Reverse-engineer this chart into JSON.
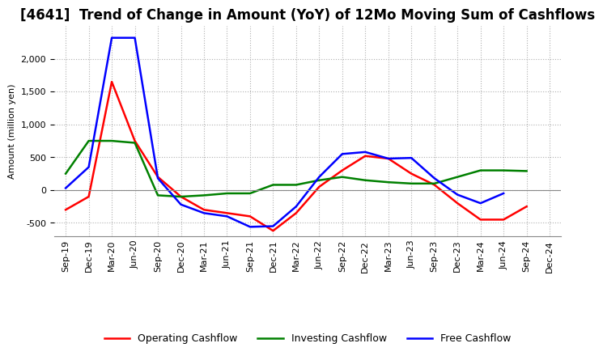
{
  "title": "[4641]  Trend of Change in Amount (YoY) of 12Mo Moving Sum of Cashflows",
  "ylabel": "Amount (million yen)",
  "ylim": [
    -700,
    2500
  ],
  "yticks": [
    -500,
    0,
    500,
    1000,
    1500,
    2000
  ],
  "x_labels": [
    "Sep-19",
    "Dec-19",
    "Mar-20",
    "Jun-20",
    "Sep-20",
    "Dec-20",
    "Mar-21",
    "Jun-21",
    "Sep-21",
    "Dec-21",
    "Mar-22",
    "Jun-22",
    "Sep-22",
    "Dec-22",
    "Mar-23",
    "Jun-23",
    "Sep-23",
    "Dec-23",
    "Mar-24",
    "Jun-24",
    "Sep-24",
    "Dec-24"
  ],
  "operating": [
    -300,
    -100,
    1650,
    750,
    200,
    -100,
    -300,
    -350,
    -400,
    -620,
    -350,
    50,
    300,
    520,
    480,
    250,
    80,
    -200,
    -450,
    -450,
    -250,
    null
  ],
  "investing": [
    250,
    750,
    750,
    720,
    -80,
    -100,
    -80,
    -50,
    -50,
    80,
    80,
    150,
    200,
    150,
    120,
    100,
    100,
    200,
    300,
    300,
    290,
    null
  ],
  "free": [
    30,
    350,
    2320,
    2320,
    180,
    -220,
    -350,
    -400,
    -560,
    -550,
    -250,
    200,
    550,
    580,
    480,
    490,
    180,
    -70,
    -200,
    -50,
    null,
    null
  ],
  "operating_color": "#ff0000",
  "investing_color": "#008000",
  "free_color": "#0000ff",
  "line_width": 1.8,
  "grid_color": "#b0b0b0",
  "background_color": "#ffffff",
  "title_fontsize": 12,
  "legend_fontsize": 9,
  "tick_fontsize": 8
}
